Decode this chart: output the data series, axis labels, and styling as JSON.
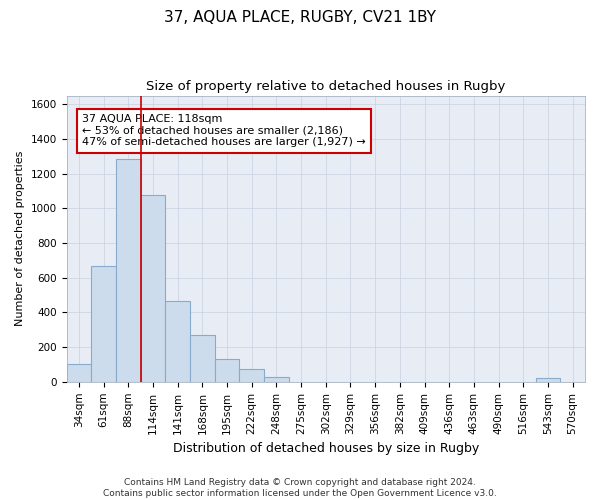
{
  "title": "37, AQUA PLACE, RUGBY, CV21 1BY",
  "subtitle": "Size of property relative to detached houses in Rugby",
  "xlabel": "Distribution of detached houses by size in Rugby",
  "ylabel": "Number of detached properties",
  "categories": [
    "34sqm",
    "61sqm",
    "88sqm",
    "114sqm",
    "141sqm",
    "168sqm",
    "195sqm",
    "222sqm",
    "248sqm",
    "275sqm",
    "302sqm",
    "329sqm",
    "356sqm",
    "382sqm",
    "409sqm",
    "436sqm",
    "463sqm",
    "490sqm",
    "516sqm",
    "543sqm",
    "570sqm"
  ],
  "values": [
    100,
    670,
    1285,
    1075,
    465,
    270,
    130,
    75,
    30,
    0,
    0,
    0,
    0,
    0,
    0,
    0,
    0,
    0,
    0,
    20,
    0
  ],
  "bar_color": "#ccdcec",
  "bar_edge_color": "#88aacc",
  "red_line_x": 2.5,
  "annotation_line1": "37 AQUA PLACE: 118sqm",
  "annotation_line2": "← 53% of detached houses are smaller (2,186)",
  "annotation_line3": "47% of semi-detached houses are larger (1,927) →",
  "annotation_box_color": "#ffffff",
  "annotation_box_edge": "#cc0000",
  "ylim": [
    0,
    1650
  ],
  "yticks": [
    0,
    200,
    400,
    600,
    800,
    1000,
    1200,
    1400,
    1600
  ],
  "grid_color": "#c8d0e0",
  "bg_color": "#e8edf5",
  "footer": "Contains HM Land Registry data © Crown copyright and database right 2024.\nContains public sector information licensed under the Open Government Licence v3.0.",
  "title_fontsize": 11,
  "subtitle_fontsize": 9.5,
  "xlabel_fontsize": 9,
  "ylabel_fontsize": 8,
  "tick_fontsize": 7.5,
  "annotation_fontsize": 8,
  "footer_fontsize": 6.5
}
